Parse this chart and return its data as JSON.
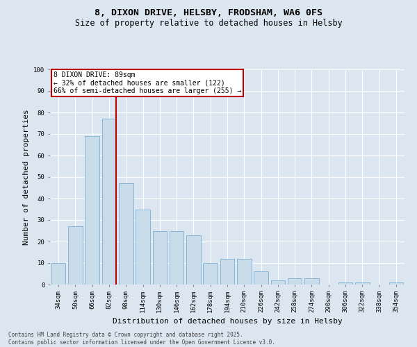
{
  "title1": "8, DIXON DRIVE, HELSBY, FRODSHAM, WA6 0FS",
  "title2": "Size of property relative to detached houses in Helsby",
  "xlabel": "Distribution of detached houses by size in Helsby",
  "ylabel": "Number of detached properties",
  "categories": [
    "34sqm",
    "50sqm",
    "66sqm",
    "82sqm",
    "98sqm",
    "114sqm",
    "130sqm",
    "146sqm",
    "162sqm",
    "178sqm",
    "194sqm",
    "210sqm",
    "226sqm",
    "242sqm",
    "258sqm",
    "274sqm",
    "290sqm",
    "306sqm",
    "322sqm",
    "338sqm",
    "354sqm"
  ],
  "values": [
    10,
    27,
    69,
    77,
    47,
    35,
    25,
    25,
    23,
    10,
    12,
    12,
    6,
    2,
    3,
    3,
    0,
    1,
    1,
    0,
    1
  ],
  "bar_color": "#c9dcea",
  "bar_edge_color": "#7bafd4",
  "vline_color": "#c00000",
  "vline_x_index": 3,
  "annotation_line1": "8 DIXON DRIVE: 89sqm",
  "annotation_line2": "← 32% of detached houses are smaller (122)",
  "annotation_line3": "66% of semi-detached houses are larger (255) →",
  "annotation_box_color": "#ffffff",
  "annotation_box_edge": "#c00000",
  "ylim": [
    0,
    100
  ],
  "yticks": [
    0,
    10,
    20,
    30,
    40,
    50,
    60,
    70,
    80,
    90,
    100
  ],
  "background_color": "#dce6f1",
  "plot_bg_color": "#dce6f1",
  "footer_text": "Contains HM Land Registry data © Crown copyright and database right 2025.\nContains public sector information licensed under the Open Government Licence v3.0.",
  "title_fontsize": 9.5,
  "subtitle_fontsize": 8.5,
  "tick_fontsize": 6.5,
  "ylabel_fontsize": 8,
  "xlabel_fontsize": 8,
  "annotation_fontsize": 7,
  "footer_fontsize": 5.5
}
